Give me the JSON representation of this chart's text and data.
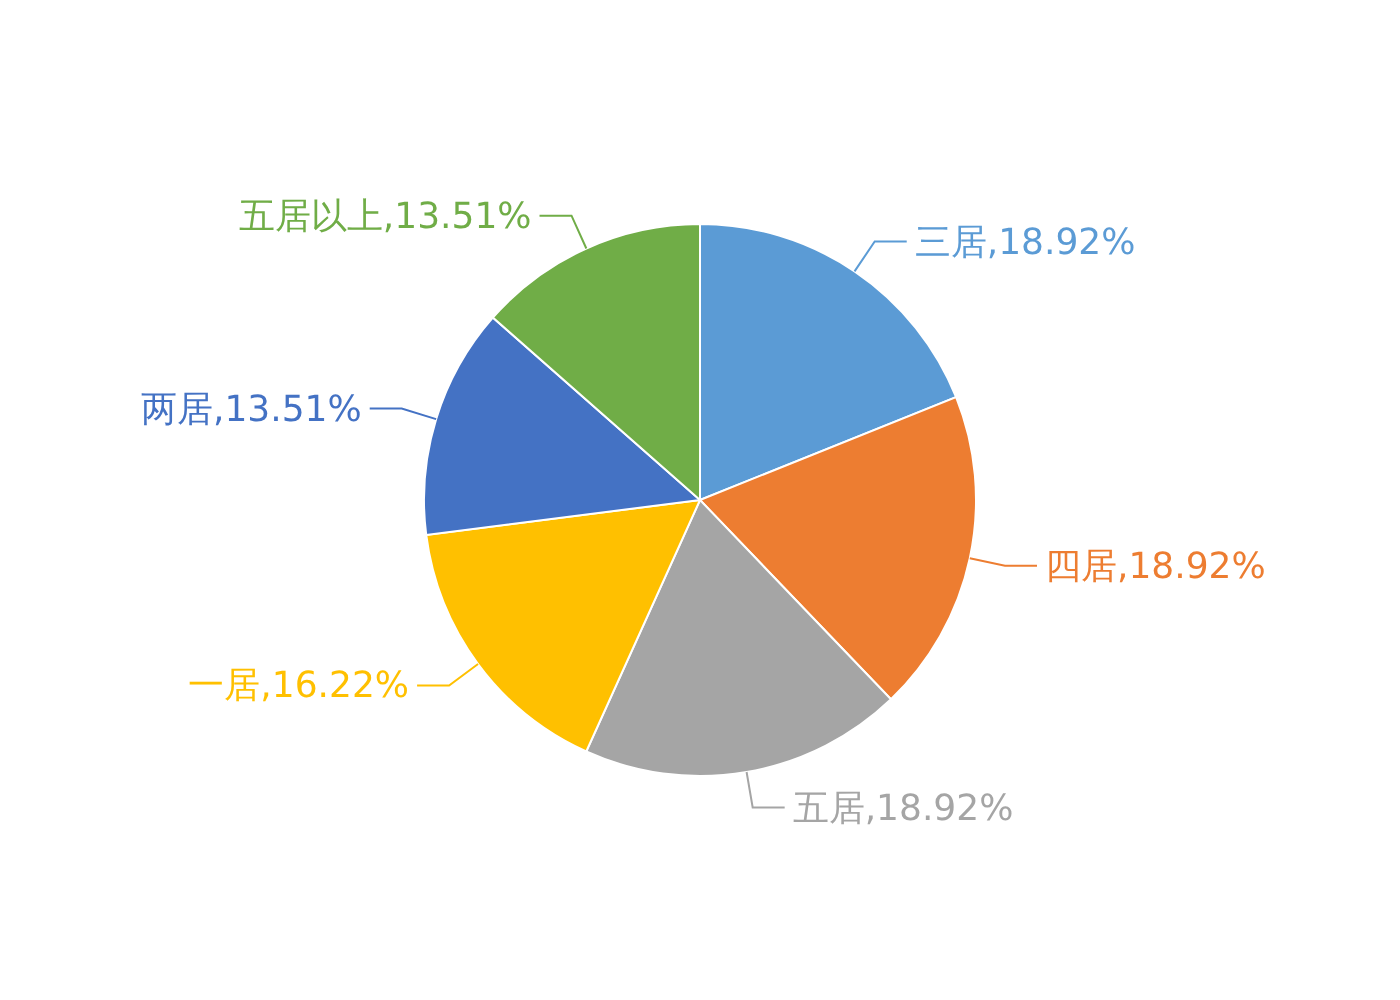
{
  "chart_data": {
    "type": "pie",
    "categories": [
      "三居",
      "四居",
      "五居",
      "一居",
      "两居",
      "五居以上"
    ],
    "values": [
      18.92,
      18.92,
      18.92,
      16.22,
      13.51,
      13.51
    ],
    "colors": [
      "#5b9bd5",
      "#ed7d31",
      "#a5a5a5",
      "#ffc000",
      "#4472c4",
      "#70ad47"
    ],
    "value_labels": [
      ",18.92%",
      ",18.92%",
      ",18.92%",
      ",16.22%",
      ",13.51%",
      ",13.51%"
    ]
  }
}
